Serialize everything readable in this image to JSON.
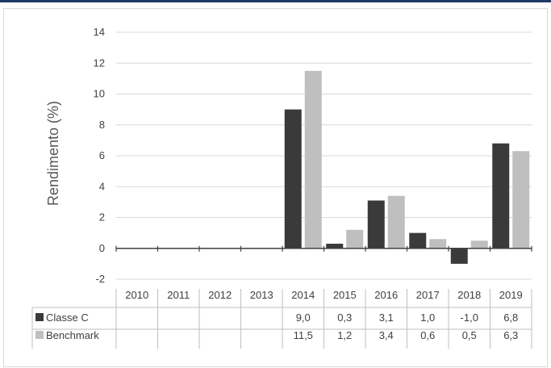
{
  "chart_data": {
    "type": "bar",
    "ylabel": "Rendimento (%)",
    "ylim": [
      -2,
      14
    ],
    "yticks": [
      "-2",
      "0",
      "2",
      "4",
      "6",
      "8",
      "10",
      "12",
      "14"
    ],
    "grid": true,
    "legend": "data-table-left",
    "categories": [
      "2010",
      "2011",
      "2012",
      "2013",
      "2014",
      "2015",
      "2016",
      "2017",
      "2018",
      "2019"
    ],
    "series": [
      {
        "name": "Classe C",
        "color": "#3a3a3a",
        "values": [
          null,
          null,
          null,
          null,
          9.0,
          0.3,
          3.1,
          1.0,
          -1.0,
          6.8
        ],
        "labels": [
          "",
          "",
          "",
          "",
          "9,0",
          "0,3",
          "3,1",
          "1,0",
          "-1,0",
          "6,8"
        ]
      },
      {
        "name": "Benchmark",
        "color": "#bfbfbf",
        "values": [
          null,
          null,
          null,
          null,
          11.5,
          1.2,
          3.4,
          0.6,
          0.5,
          6.3
        ],
        "labels": [
          "",
          "",
          "",
          "",
          "11,5",
          "1,2",
          "3,4",
          "0,6",
          "0,5",
          "6,3"
        ]
      }
    ]
  }
}
